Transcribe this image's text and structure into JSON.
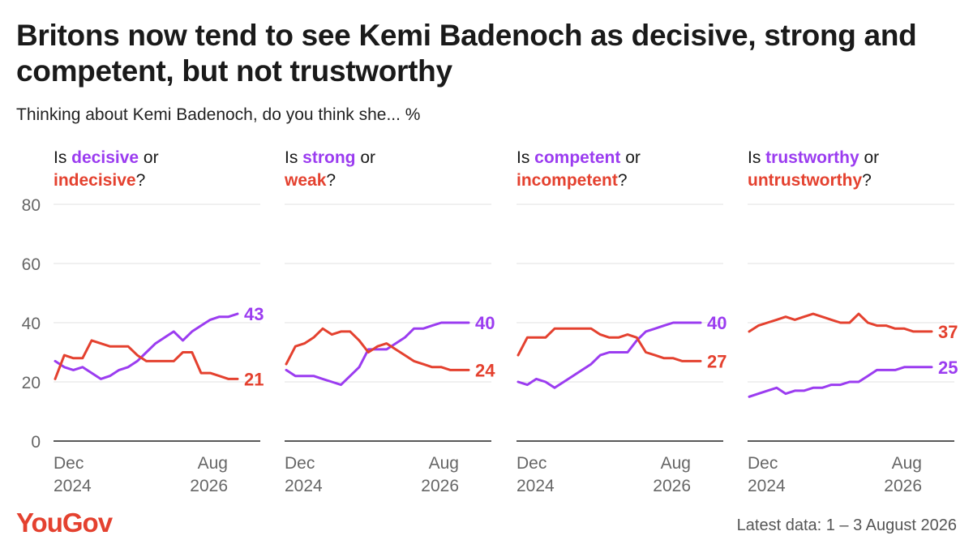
{
  "header": {
    "title": "Britons now tend to see Kemi Badenoch as decisive, strong and competent, but not trustworthy",
    "subtitle": "Thinking about Kemi Badenoch, do you think she... %"
  },
  "footer": {
    "logo": "YouGov",
    "note": "Latest data: 1 – 3 August 2026"
  },
  "colors": {
    "positive": "#9b3cf0",
    "negative": "#e4412f",
    "axis": "#222222",
    "grid": "#e0e0e0",
    "tick": "#666666"
  },
  "chart_data": {
    "type": "line",
    "ylim": [
      0,
      80
    ],
    "yticks": [
      0,
      20,
      40,
      60,
      80
    ],
    "xticks": [
      {
        "label": [
          "Dec",
          "2024"
        ],
        "index": 0
      },
      {
        "label": [
          "Aug",
          "2026"
        ],
        "index": 19
      }
    ],
    "panels": [
      {
        "question": {
          "pre": "Is ",
          "positive": "decisive",
          "mid": " or",
          "negative": "indecisive",
          "post": "?"
        },
        "series": [
          {
            "name": "decisive",
            "role": "positive",
            "label": "43",
            "x": [
              0,
              1,
              2,
              3,
              5,
              6,
              7,
              8,
              9,
              10,
              11,
              12,
              13,
              14,
              15,
              16,
              17,
              18,
              19,
              20
            ],
            "values": [
              27,
              25,
              24,
              25,
              21,
              22,
              24,
              25,
              27,
              30,
              33,
              35,
              37,
              34,
              37,
              39,
              41,
              42,
              42,
              43
            ]
          },
          {
            "name": "indecisive",
            "role": "negative",
            "label": "21",
            "x": [
              0,
              1,
              2,
              3,
              4,
              5,
              6,
              7,
              8,
              9,
              10,
              11,
              12,
              13,
              14,
              15,
              16,
              17,
              18,
              19,
              20
            ],
            "values": [
              21,
              29,
              28,
              28,
              34,
              33,
              32,
              32,
              32,
              29,
              27,
              27,
              27,
              27,
              30,
              30,
              23,
              23,
              22,
              21,
              21
            ]
          }
        ]
      },
      {
        "question": {
          "pre": "Is ",
          "positive": "strong",
          "mid": " or",
          "negative": "weak",
          "post": "?"
        },
        "series": [
          {
            "name": "strong",
            "role": "positive",
            "label": "40",
            "x": [
              0,
              1,
              2,
              3,
              4,
              5,
              6,
              7,
              8,
              9,
              10,
              11,
              12,
              13,
              14,
              15,
              16,
              17,
              18,
              19,
              20
            ],
            "values": [
              24,
              22,
              22,
              22,
              21,
              20,
              19,
              22,
              25,
              31,
              31,
              31,
              33,
              35,
              38,
              38,
              39,
              40,
              40,
              40,
              40
            ]
          },
          {
            "name": "weak",
            "role": "negative",
            "label": "24",
            "x": [
              0,
              1,
              2,
              3,
              4,
              5,
              6,
              7,
              8,
              9,
              10,
              11,
              12,
              13,
              14,
              15,
              16,
              17,
              18,
              19,
              20
            ],
            "values": [
              26,
              32,
              33,
              35,
              38,
              36,
              37,
              37,
              34,
              30,
              32,
              33,
              31,
              29,
              27,
              26,
              25,
              25,
              24,
              24,
              24
            ]
          }
        ]
      },
      {
        "question": {
          "pre": "Is ",
          "positive": "competent",
          "mid": " or",
          "negative": "incompetent",
          "post": "?"
        },
        "series": [
          {
            "name": "competent",
            "role": "positive",
            "label": "40",
            "x": [
              0,
              1,
              2,
              3,
              4,
              5,
              6,
              7,
              8,
              9,
              10,
              11,
              12,
              13,
              14,
              15,
              16,
              17,
              18,
              19,
              20
            ],
            "values": [
              20,
              19,
              21,
              20,
              18,
              20,
              22,
              24,
              26,
              29,
              30,
              30,
              30,
              34,
              37,
              38,
              39,
              40,
              40,
              40,
              40
            ]
          },
          {
            "name": "incompetent",
            "role": "negative",
            "label": "27",
            "x": [
              0,
              1,
              2,
              3,
              4,
              5,
              6,
              7,
              8,
              9,
              10,
              11,
              12,
              13,
              14,
              15,
              16,
              17,
              18,
              19,
              20
            ],
            "values": [
              29,
              35,
              35,
              35,
              38,
              38,
              38,
              38,
              38,
              36,
              35,
              35,
              36,
              35,
              30,
              29,
              28,
              28,
              27,
              27,
              27
            ]
          }
        ]
      },
      {
        "question": {
          "pre": "Is ",
          "positive": "trustworthy",
          "mid": " or",
          "negative": "untrustworthy",
          "post": "?"
        },
        "series": [
          {
            "name": "trustworthy",
            "role": "positive",
            "label": "25",
            "x": [
              0,
              1,
              2,
              3,
              4,
              5,
              6,
              7,
              8,
              9,
              10,
              11,
              12,
              13,
              14,
              15,
              16,
              17,
              18,
              19,
              20
            ],
            "values": [
              15,
              16,
              17,
              18,
              16,
              17,
              17,
              18,
              18,
              19,
              19,
              20,
              20,
              22,
              24,
              24,
              24,
              25,
              25,
              25,
              25
            ]
          },
          {
            "name": "untrustworthy",
            "role": "negative",
            "label": "37",
            "x": [
              0,
              1,
              2,
              3,
              4,
              5,
              6,
              7,
              8,
              9,
              10,
              11,
              12,
              13,
              14,
              15,
              16,
              17,
              18,
              19,
              20
            ],
            "values": [
              37,
              39,
              40,
              41,
              42,
              41,
              42,
              43,
              42,
              41,
              40,
              40,
              43,
              40,
              39,
              39,
              38,
              38,
              37,
              37,
              37
            ]
          }
        ]
      }
    ]
  }
}
